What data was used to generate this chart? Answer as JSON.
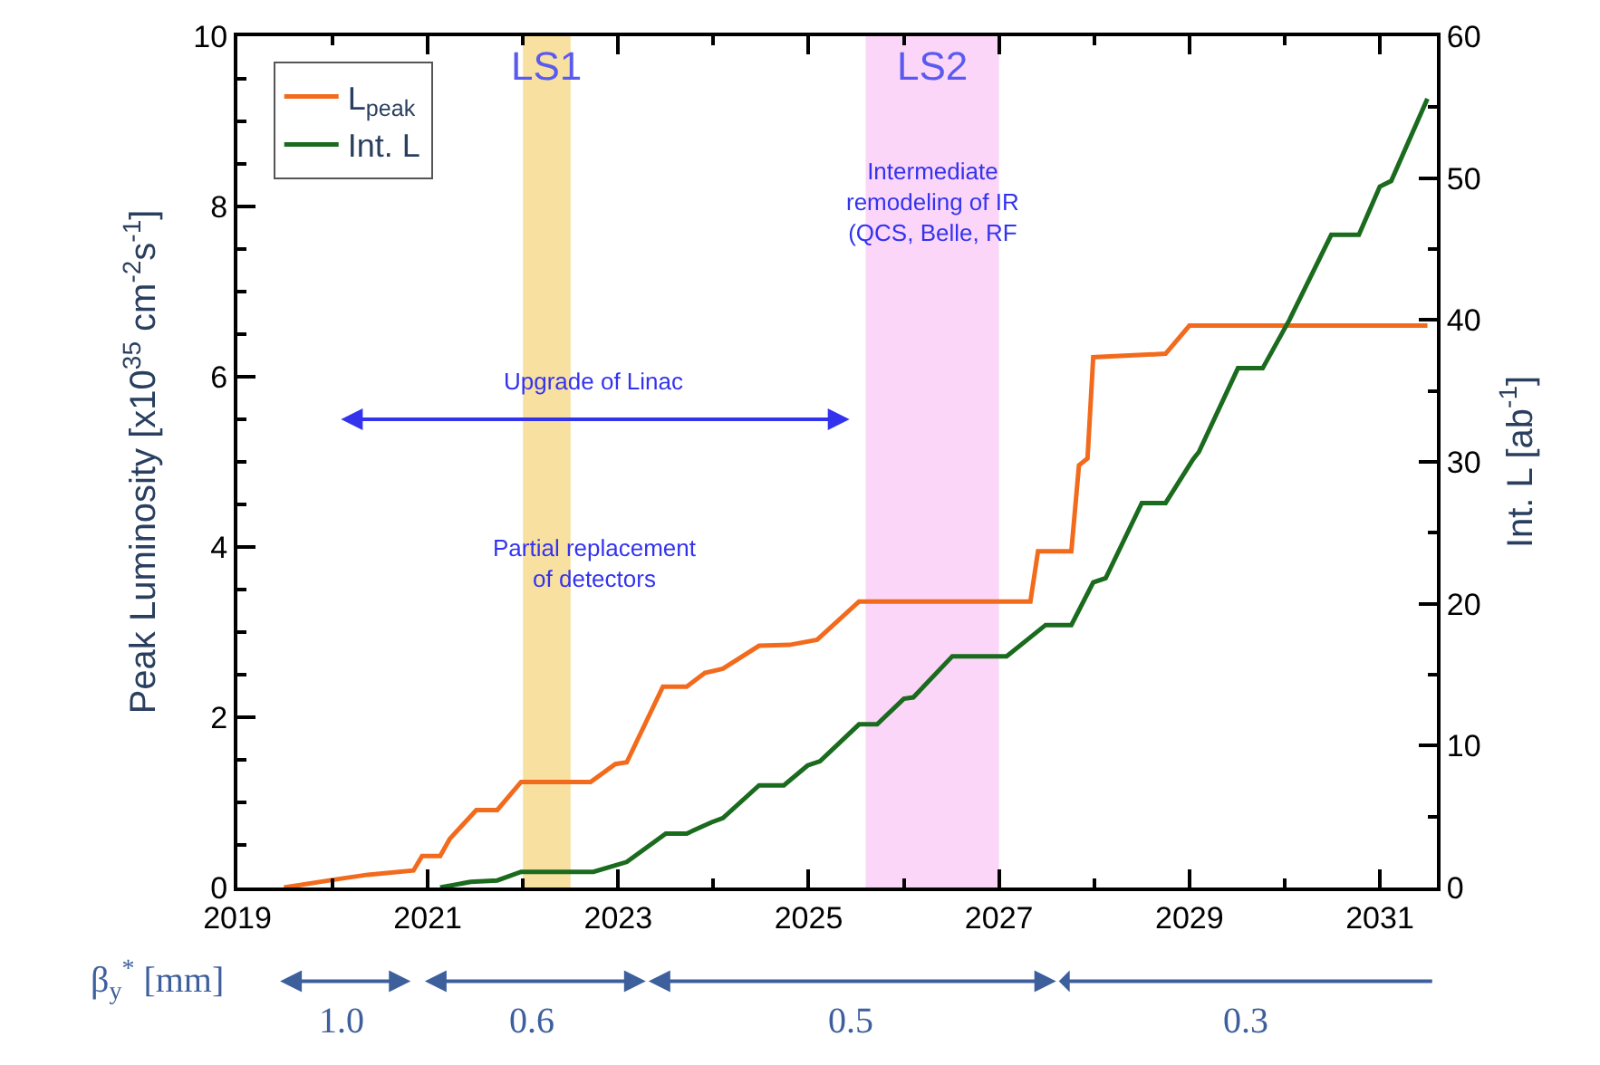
{
  "chart_data": {
    "type": "line",
    "xlabel": null,
    "ylabel": "Peak Luminosity [x10$^{35}$ cm$^{-2}$s$^{-1}$]",
    "y2label": "Int. L [ab$^{-1}$]",
    "xlim": [
      2019,
      2031.6
    ],
    "xticks": [
      2019,
      2021,
      2023,
      2025,
      2027,
      2029,
      2031
    ],
    "ylim": [
      0,
      10
    ],
    "yticks": [
      0,
      2,
      4,
      6,
      8,
      10
    ],
    "y2lim": [
      0,
      60
    ],
    "y2ticks": [
      0,
      10,
      20,
      30,
      40,
      50,
      60
    ],
    "legend": "top left",
    "grid": false,
    "line_style": "solid",
    "marker": "none",
    "series": [
      {
        "name": "L$_{peak}$",
        "color": "#f26b1d",
        "x": [
          2019.49,
          2020.06,
          2020.37,
          2020.85,
          2020.94,
          2021.13,
          2021.23,
          2021.51,
          2021.73,
          2021.98,
          2022.71,
          2022.97,
          2023.09,
          2023.47,
          2023.72,
          2023.91,
          2024.1,
          2024.48,
          2024.8,
          2025.09,
          2025.53,
          2027.33,
          2027.41,
          2027.76,
          2027.84,
          2027.93,
          2027.99,
          2028.75,
          2029.0,
          2031.5
        ],
        "values": [
          0,
          0.1,
          0.15,
          0.2,
          0.37,
          0.37,
          0.57,
          0.91,
          0.91,
          1.24,
          1.24,
          1.45,
          1.47,
          2.36,
          2.36,
          2.52,
          2.57,
          2.84,
          2.85,
          2.91,
          3.36,
          3.36,
          3.95,
          3.95,
          4.96,
          5.04,
          6.23,
          6.27,
          6.6,
          6.6
        ]
      },
      {
        "name": "Int. L",
        "color": "#1a6b1e",
        "axis": "y2",
        "x": [
          2021.13,
          2021.45,
          2021.73,
          2021.98,
          2022.74,
          2023.09,
          2023.5,
          2023.72,
          2023.98,
          2024.1,
          2024.48,
          2024.74,
          2024.99,
          2025.12,
          2025.53,
          2025.72,
          2026.0,
          2026.1,
          2026.51,
          2027.08,
          2027.49,
          2027.76,
          2027.99,
          2028.12,
          2028.5,
          2028.75,
          2029.04,
          2029.1,
          2029.51,
          2029.77,
          2030.05,
          2030.49,
          2030.78,
          2031.0,
          2031.12,
          2031.5
        ],
        "values": [
          0,
          0.4,
          0.5,
          1.1,
          1.1,
          1.8,
          3.8,
          3.8,
          4.6,
          4.9,
          7.2,
          7.2,
          8.6,
          8.9,
          11.5,
          11.5,
          13.3,
          13.4,
          16.3,
          16.3,
          18.5,
          18.5,
          21.5,
          21.8,
          27.1,
          27.1,
          30.2,
          30.7,
          36.6,
          36.6,
          40.0,
          46.0,
          46.0,
          49.4,
          49.8,
          55.6
        ]
      }
    ],
    "bands": [
      {
        "axis": "x",
        "from": 2022.0,
        "to": 2022.5,
        "label": "LS1",
        "color": "#f7e0a0"
      },
      {
        "axis": "x",
        "from": 2025.6,
        "to": 2027.0,
        "label": "LS2",
        "color": "#fbd6f8"
      }
    ],
    "annotations": [
      "Upgrade of Linac",
      "Partial replacement\nof detectors",
      "Intermediate\nremodeling of IR\n(QCS, Belle, RF",
      "β$_{y}$$^{*}$ [mm]",
      "1.0",
      "0.6",
      "0.5",
      "0.3"
    ]
  }
}
